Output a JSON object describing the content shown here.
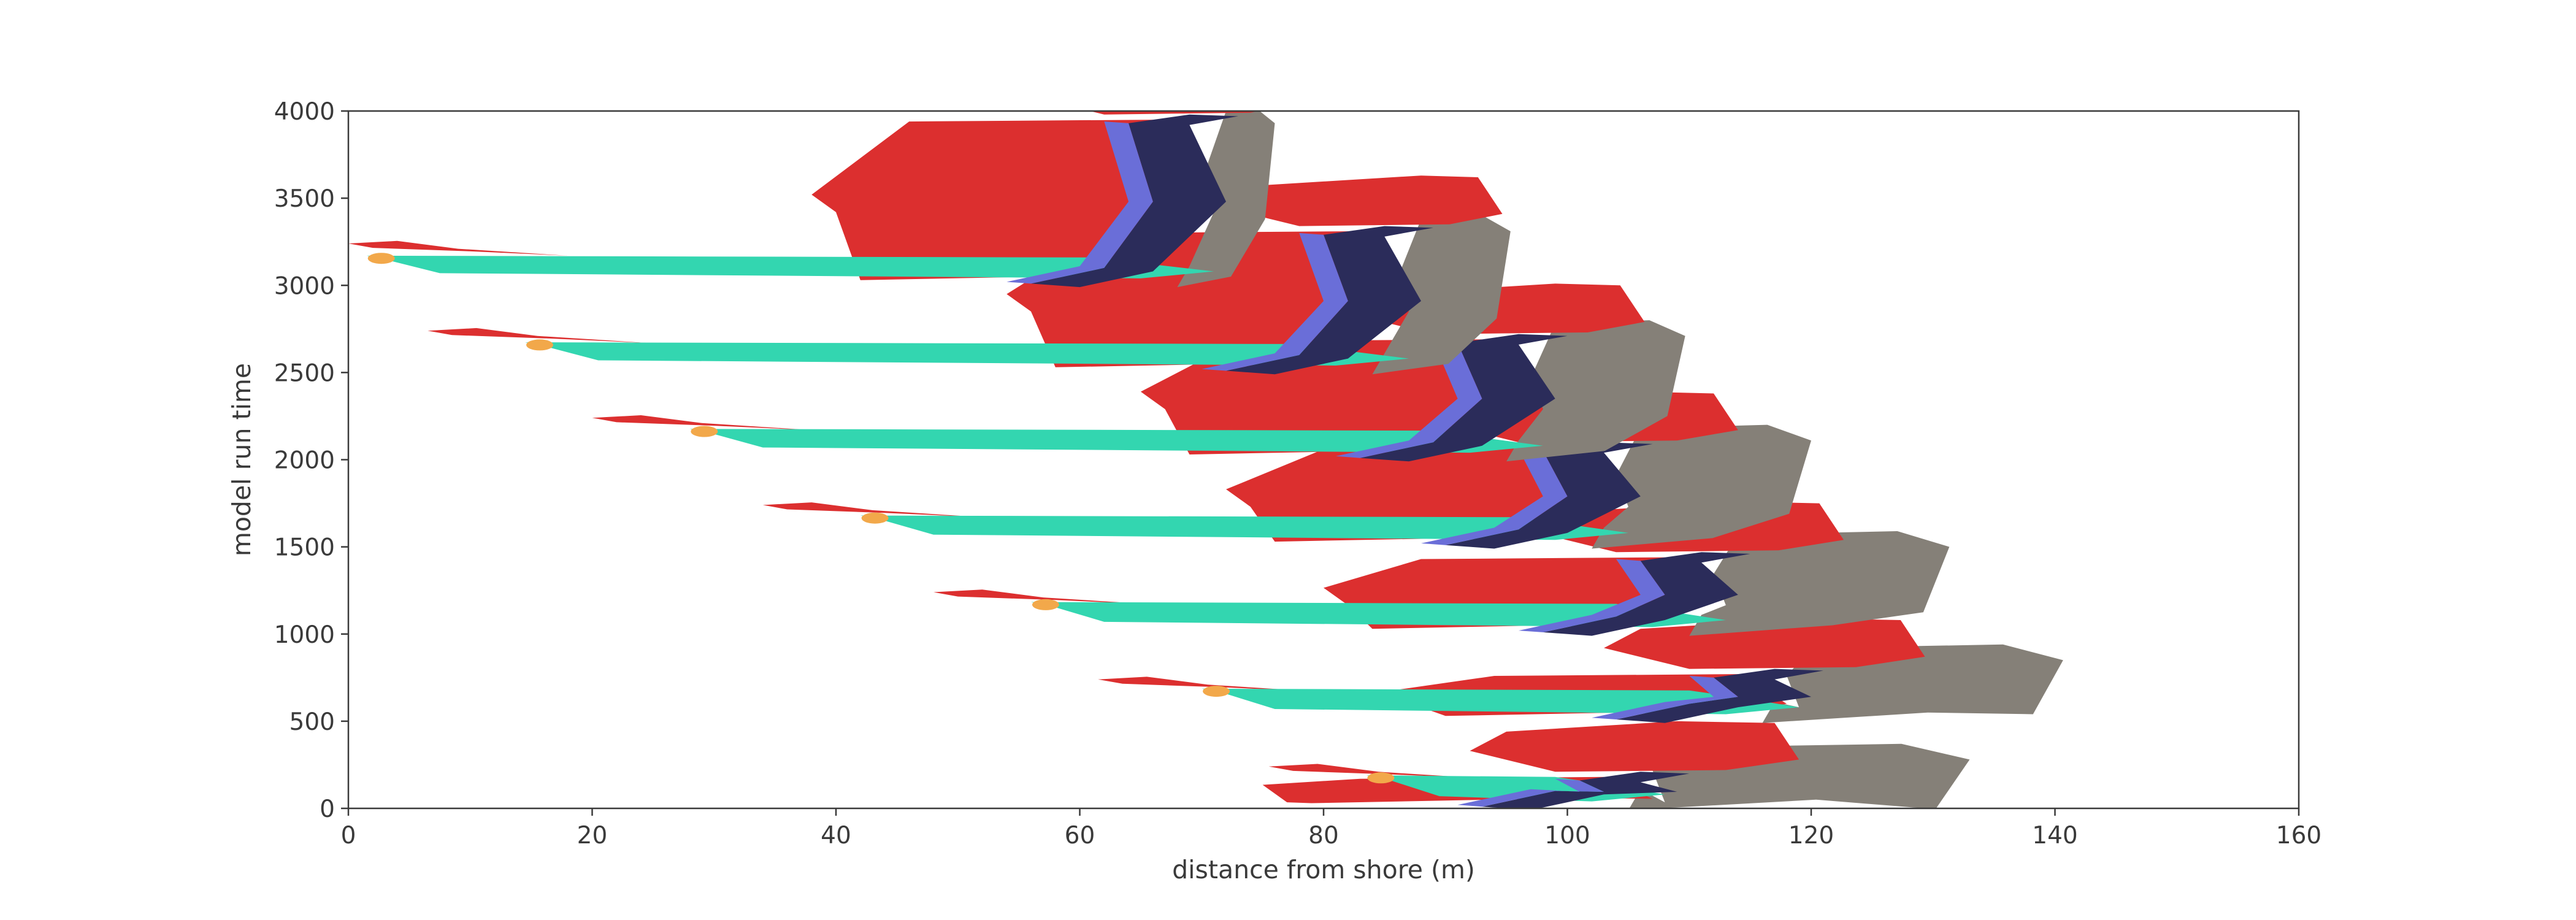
{
  "chart_data": {
    "type": "heatmap",
    "title": "",
    "xlabel": "distance from shore (m)",
    "ylabel": "model run time",
    "xlim": [
      0,
      160
    ],
    "ylim": [
      0,
      4000
    ],
    "x_ticks": [
      0,
      20,
      40,
      60,
      80,
      100,
      120,
      140,
      160
    ],
    "y_ticks": [
      0,
      500,
      1000,
      1500,
      2000,
      2500,
      3000,
      3500,
      4000
    ],
    "grid": false,
    "legend": "none",
    "colors": {
      "red_zone": "#dc2f2f",
      "teal_zone": "#33d6b0",
      "navy_zone": "#2b2c5a",
      "blue_zone": "#6a6ed8",
      "gray_zone": "#858078",
      "orange_zone": "#f2a84a",
      "axis": "#3a3a3a",
      "background": "#ffffff"
    },
    "cycles": [
      {
        "t0": 0,
        "t1": 190,
        "x_start": 83.5,
        "front_x": 105,
        "red_tail_x": 75.5
      },
      {
        "t0": 500,
        "t1": 780,
        "x_start": 70,
        "front_x": 116,
        "red_tail_x": 61.5
      },
      {
        "t0": 1000,
        "t1": 1450,
        "x_start": 56,
        "front_x": 110,
        "red_tail_x": 48
      },
      {
        "t0": 1500,
        "t1": 2080,
        "x_start": 42,
        "front_x": 102,
        "red_tail_x": 34
      },
      {
        "t0": 2000,
        "t1": 2700,
        "x_start": 28,
        "front_x": 95,
        "red_tail_x": 20
      },
      {
        "t0": 2500,
        "t1": 3320,
        "x_start": 14.5,
        "front_x": 84,
        "red_tail_x": 6.5
      },
      {
        "t0": 3000,
        "t1": 3960,
        "x_start": 1.5,
        "front_x": 68,
        "red_tail_x": 0
      }
    ]
  }
}
